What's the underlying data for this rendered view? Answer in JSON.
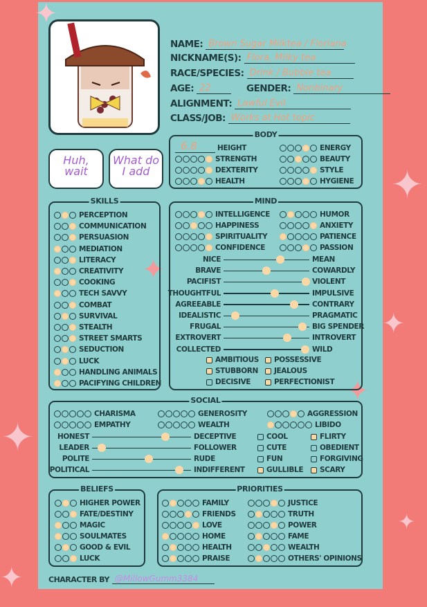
{
  "colors": {
    "background": "#f27b78",
    "card": "#8fd0cf",
    "filled": "#fcd8a6",
    "ink": "#1f3a3c",
    "handwriting": "#f3a07c",
    "bubble_text": "#a45cd0"
  },
  "info": [
    {
      "label": "NAME:",
      "value": "Brown Sugar Milktea / Floriana"
    },
    {
      "label": "NICKNAME(S):",
      "value": "Flora, Milky tea"
    },
    {
      "label": "RACE/SPECIES:",
      "value": "Drink / Bubble tea"
    },
    {
      "label": "AGE:",
      "value": "22"
    },
    {
      "label": "GENDER:",
      "value": "Nonbinary"
    },
    {
      "label": "ALIGNMENT:",
      "value": "Lawful Evil"
    },
    {
      "label": "CLASS/JOB:",
      "value": "Works at Hot topic"
    }
  ],
  "bubbles": [
    "Huh, wait",
    "What do I add"
  ],
  "body": {
    "title": "BODY",
    "height": {
      "label": "HEIGHT",
      "value": "6.8"
    },
    "left": [
      {
        "label": "STRENGTH",
        "value": 5
      },
      {
        "label": "DEXTERITY",
        "value": 5
      },
      {
        "label": "HEALTH",
        "value": 4
      }
    ],
    "right": [
      {
        "label": "ENERGY",
        "value": 4
      },
      {
        "label": "BEAUTY",
        "value": 3
      },
      {
        "label": "STYLE",
        "value": 5
      },
      {
        "label": "HYGIENE",
        "value": 4
      }
    ]
  },
  "skills": {
    "title": "SKILLS",
    "items": [
      {
        "label": "PERCEPTION",
        "value": 2
      },
      {
        "label": "COMMUNICATION",
        "value": 3
      },
      {
        "label": "PERSUASION",
        "value": 3
      },
      {
        "label": "MEDIATION",
        "value": 1
      },
      {
        "label": "LITERACY",
        "value": 3
      },
      {
        "label": "CREATIVITY",
        "value": 1
      },
      {
        "label": "COOKING",
        "value": 3
      },
      {
        "label": "TECH SAVVY",
        "value": 1
      },
      {
        "label": "COMBAT",
        "value": 3
      },
      {
        "label": "SURVIVAL",
        "value": 2
      },
      {
        "label": "STEALTH",
        "value": 3
      },
      {
        "label": "STREET SMARTS",
        "value": 3
      },
      {
        "label": "SEDUCTION",
        "value": 2
      },
      {
        "label": "LUCK",
        "value": 2
      },
      {
        "label": "HANDLING ANIMALS",
        "value": 1
      },
      {
        "label": "PACIFYING CHILDREN",
        "value": 1
      }
    ]
  },
  "mind": {
    "title": "MIND",
    "left": [
      {
        "label": "INTELLIGENCE",
        "value": 4
      },
      {
        "label": "HAPPINESS",
        "value": 3
      },
      {
        "label": "SPIRITUALITY",
        "value": 5
      },
      {
        "label": "CONFIDENCE",
        "value": 5
      }
    ],
    "right": [
      {
        "label": "HUMOR",
        "value": 2
      },
      {
        "label": "ANXIETY",
        "value": 5
      },
      {
        "label": "PATIENCE",
        "value": 1
      },
      {
        "label": "PASSION",
        "value": 4
      }
    ],
    "sliders": [
      {
        "left": "NICE",
        "right": "MEAN",
        "value": 0.66
      },
      {
        "left": "BRAVE",
        "right": "COWARDLY",
        "value": 0.5
      },
      {
        "left": "PACIFIST",
        "right": "VIOLENT",
        "value": 0.96
      },
      {
        "left": "THOUGHTFUL",
        "right": "IMPULSIVE",
        "value": 0.6
      },
      {
        "left": "AGREEABLE",
        "right": "CONTRARY",
        "value": 0.82
      },
      {
        "left": "IDEALISTIC",
        "right": "PRAGMATIC",
        "value": 0.14
      },
      {
        "left": "FRUGAL",
        "right": "BIG SPENDER",
        "value": 0.92
      },
      {
        "left": "EXTROVERT",
        "right": "INTROVERT",
        "value": 0.74
      },
      {
        "left": "COLLECTED",
        "right": "WILD",
        "value": 0.95
      }
    ],
    "checks": [
      {
        "label": "AMBITIOUS",
        "checked": true
      },
      {
        "label": "POSSESSIVE",
        "checked": true
      },
      {
        "label": "STUBBORN",
        "checked": true
      },
      {
        "label": "JEALOUS",
        "checked": true
      },
      {
        "label": "DECISIVE",
        "checked": false
      },
      {
        "label": "PERFECTIONIST",
        "checked": true
      }
    ]
  },
  "social": {
    "title": "SOCIAL",
    "ratings": [
      {
        "label": "CHARISMA",
        "value": 0
      },
      {
        "label": "GENEROSITY",
        "value": 0
      },
      {
        "label": "AGGRESSION",
        "value": 4
      },
      {
        "label": "EMPATHY",
        "value": 0
      },
      {
        "label": "WEALTH",
        "value": 0
      },
      {
        "label": "LIBIDO",
        "value": 1
      }
    ],
    "sliders": [
      {
        "left": "HONEST",
        "right": "DECEPTIVE",
        "value": 0.74
      },
      {
        "left": "LEADER",
        "right": "FOLLOWER",
        "value": 0.1
      },
      {
        "left": "POLITE",
        "right": "RUDE",
        "value": 0.57
      },
      {
        "left": "POLITICAL",
        "right": "INDIFFERENT",
        "value": 0.88
      }
    ],
    "checks": [
      {
        "label": "COOL",
        "checked": false
      },
      {
        "label": "FLIRTY",
        "checked": true
      },
      {
        "label": "CUTE",
        "checked": false
      },
      {
        "label": "OBEDIENT",
        "checked": false
      },
      {
        "label": "FUN",
        "checked": false
      },
      {
        "label": "FORGIVING",
        "checked": false
      },
      {
        "label": "GULLIBLE",
        "checked": true
      },
      {
        "label": "SCARY",
        "checked": true
      }
    ]
  },
  "beliefs": {
    "title": "BELIEFS",
    "items": [
      {
        "label": "HIGHER POWER",
        "value": 2
      },
      {
        "label": "FATE/DESTINY",
        "value": 3
      },
      {
        "label": "MAGIC",
        "value": 1
      },
      {
        "label": "SOULMATES",
        "value": 1
      },
      {
        "label": "GOOD & EVIL",
        "value": 2
      },
      {
        "label": "LUCK",
        "value": 3
      }
    ]
  },
  "priorities": {
    "title": "PRIORITIES",
    "left": [
      {
        "label": "FAMILY",
        "value": 2
      },
      {
        "label": "FRIENDS",
        "value": 4
      },
      {
        "label": "LOVE",
        "value": 5
      },
      {
        "label": "HOME",
        "value": 1
      },
      {
        "label": "HEALTH",
        "value": 2
      },
      {
        "label": "PRAISE",
        "value": 2
      }
    ],
    "right": [
      {
        "label": "JUSTICE",
        "value": 4
      },
      {
        "label": "TRUTH",
        "value": 2
      },
      {
        "label": "POWER",
        "value": 4
      },
      {
        "label": "FAME",
        "value": 2
      },
      {
        "label": "WEALTH",
        "value": 3
      },
      {
        "label": "OTHERS' OPINIONS",
        "value": 2
      }
    ]
  },
  "credit": {
    "label": "CHARACTER BY",
    "value": "@MillowGumm3384"
  }
}
